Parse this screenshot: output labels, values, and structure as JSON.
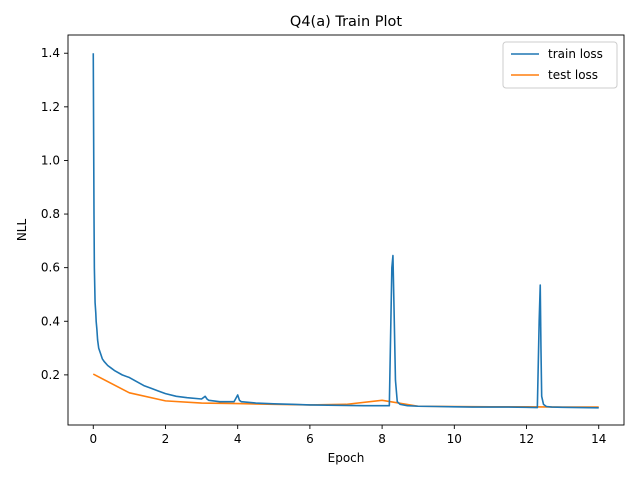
{
  "chart_data": {
    "type": "line",
    "title": "Q4(a) Train Plot",
    "xlabel": "Epoch",
    "ylabel": "NLL",
    "xlim": [
      -0.7,
      14.7
    ],
    "ylim": [
      0.013,
      1.468
    ],
    "xticks": [
      0,
      2,
      4,
      6,
      8,
      10,
      12,
      14
    ],
    "yticks": [
      0.2,
      0.4,
      0.6,
      0.8,
      1.0,
      1.2,
      1.4
    ],
    "xtick_labels": [
      "0",
      "2",
      "4",
      "6",
      "8",
      "10",
      "12",
      "14"
    ],
    "ytick_labels": [
      "0.2",
      "0.4",
      "0.6",
      "0.8",
      "1.0",
      "1.2",
      "1.4"
    ],
    "grid": false,
    "legend_position": "top-right",
    "series": [
      {
        "name": "train loss",
        "color": "#1f77b4",
        "x": [
          0.0,
          0.01,
          0.02,
          0.03,
          0.05,
          0.07,
          0.08,
          0.1,
          0.12,
          0.15,
          0.2,
          0.25,
          0.3,
          0.4,
          0.5,
          0.6,
          0.8,
          1.0,
          1.2,
          1.4,
          1.6,
          1.8,
          2.0,
          2.3,
          2.6,
          3.0,
          3.1,
          3.15,
          3.2,
          3.5,
          3.9,
          4.0,
          4.05,
          4.1,
          4.5,
          5.0,
          5.5,
          6.0,
          6.5,
          7.0,
          7.5,
          8.0,
          8.2,
          8.27,
          8.3,
          8.33,
          8.37,
          8.42,
          8.5,
          8.7,
          9.0,
          9.5,
          10.0,
          10.5,
          11.0,
          11.5,
          12.0,
          12.3,
          12.35,
          12.38,
          12.4,
          12.42,
          12.47,
          12.55,
          12.7,
          13.0,
          13.5,
          14.0
        ],
        "y": [
          1.4,
          1.1,
          0.8,
          0.6,
          0.47,
          0.43,
          0.4,
          0.37,
          0.33,
          0.3,
          0.28,
          0.26,
          0.25,
          0.235,
          0.225,
          0.215,
          0.2,
          0.19,
          0.175,
          0.16,
          0.15,
          0.14,
          0.13,
          0.12,
          0.115,
          0.11,
          0.12,
          0.11,
          0.105,
          0.1,
          0.1,
          0.125,
          0.105,
          0.1,
          0.095,
          0.092,
          0.09,
          0.088,
          0.087,
          0.086,
          0.085,
          0.085,
          0.085,
          0.6,
          0.645,
          0.45,
          0.18,
          0.1,
          0.09,
          0.085,
          0.083,
          0.082,
          0.081,
          0.08,
          0.08,
          0.08,
          0.079,
          0.078,
          0.4,
          0.535,
          0.3,
          0.12,
          0.09,
          0.082,
          0.08,
          0.079,
          0.078,
          0.077
        ]
      },
      {
        "name": "test loss",
        "color": "#ff7f0e",
        "x": [
          0,
          1,
          2,
          3,
          4,
          5,
          6,
          7,
          8,
          9,
          10,
          11,
          12,
          13,
          14
        ],
        "y": [
          0.203,
          0.133,
          0.103,
          0.095,
          0.093,
          0.09,
          0.088,
          0.09,
          0.105,
          0.083,
          0.082,
          0.081,
          0.081,
          0.08,
          0.08
        ]
      }
    ]
  }
}
